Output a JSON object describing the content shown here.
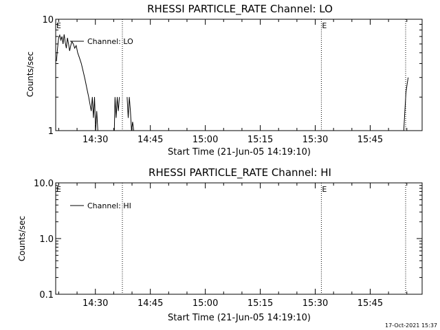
{
  "footer": {
    "timestamp": "17-Oct-2021 15:37"
  },
  "chart_data": [
    {
      "type": "line",
      "title": "RHESSI PARTICLE_RATE Channel: LO",
      "xlabel": "Start Time (21-Jun-05 14:19:10)",
      "ylabel": "Counts/sec",
      "yscale": "log",
      "ylim": [
        1,
        10
      ],
      "xlim_minutes_after_start": [
        0,
        100
      ],
      "x_ticks": [
        {
          "label": "14:30",
          "minutes": 10.83
        },
        {
          "label": "14:45",
          "minutes": 25.83
        },
        {
          "label": "15:00",
          "minutes": 40.83
        },
        {
          "label": "15:15",
          "minutes": 55.83
        },
        {
          "label": "15:30",
          "minutes": 70.83
        },
        {
          "label": "15:45",
          "minutes": 85.83
        }
      ],
      "y_ticks": [
        {
          "label": "1",
          "value": 1
        },
        {
          "label": "10",
          "value": 10
        }
      ],
      "legend": {
        "label": "Channel: LO",
        "placement": "top-left"
      },
      "markers": [
        {
          "label": "E",
          "minutes": 0
        },
        {
          "label": "E",
          "minutes": 72.5
        }
      ],
      "vlines_minutes": [
        18.2,
        72.5,
        95.5
      ],
      "series": [
        {
          "name": "Channel: LO",
          "points": [
            [
              0.2,
              4.2
            ],
            [
              0.5,
              5.5
            ],
            [
              0.8,
              6.8
            ],
            [
              1.1,
              7.2
            ],
            [
              1.4,
              6.5
            ],
            [
              1.7,
              7.0
            ],
            [
              2.0,
              6.0
            ],
            [
              2.3,
              7.3
            ],
            [
              2.6,
              6.2
            ],
            [
              2.9,
              5.5
            ],
            [
              3.2,
              6.8
            ],
            [
              3.5,
              6.0
            ],
            [
              3.8,
              5.2
            ],
            [
              4.1,
              5.8
            ],
            [
              4.4,
              6.3
            ],
            [
              4.8,
              6.0
            ],
            [
              5.2,
              5.5
            ],
            [
              5.6,
              5.8
            ],
            [
              6.0,
              5.0
            ],
            [
              6.5,
              4.5
            ],
            [
              7.0,
              4.0
            ],
            [
              7.5,
              3.4
            ],
            [
              8.0,
              2.9
            ],
            [
              8.5,
              2.4
            ],
            [
              9.0,
              2.0
            ],
            [
              9.4,
              1.7
            ],
            [
              9.7,
              1.5
            ],
            [
              10.0,
              2.0
            ],
            [
              10.3,
              1.3
            ],
            [
              10.6,
              2.0
            ],
            [
              10.9,
              1.0
            ],
            [
              11.2,
              1.5
            ],
            [
              11.5,
              1.0
            ],
            [
              16.0,
              1.0
            ],
            [
              16.2,
              2.0
            ],
            [
              16.5,
              1.3
            ],
            [
              16.8,
              2.0
            ],
            [
              17.1,
              1.5
            ],
            [
              17.4,
              2.0
            ],
            [
              19.5,
              2.0
            ],
            [
              19.8,
              1.3
            ],
            [
              20.1,
              2.0
            ],
            [
              20.4,
              1.5
            ],
            [
              20.7,
              1.0
            ],
            [
              21.0,
              1.2
            ],
            [
              21.3,
              1.0
            ],
            [
              95.0,
              1.0
            ],
            [
              95.3,
              1.5
            ],
            [
              95.6,
              2.2
            ],
            [
              95.9,
              2.6
            ],
            [
              96.2,
              3.0
            ]
          ]
        }
      ]
    },
    {
      "type": "line",
      "title": "RHESSI PARTICLE_RATE Channel: HI",
      "xlabel": "Start Time (21-Jun-05 14:19:10)",
      "ylabel": "Counts/sec",
      "yscale": "log",
      "ylim": [
        0.1,
        10
      ],
      "xlim_minutes_after_start": [
        0,
        100
      ],
      "x_ticks": [
        {
          "label": "14:30",
          "minutes": 10.83
        },
        {
          "label": "14:45",
          "minutes": 25.83
        },
        {
          "label": "15:00",
          "minutes": 40.83
        },
        {
          "label": "15:15",
          "minutes": 55.83
        },
        {
          "label": "15:30",
          "minutes": 70.83
        },
        {
          "label": "15:45",
          "minutes": 85.83
        }
      ],
      "y_ticks": [
        {
          "label": "0.1",
          "value": 0.1
        },
        {
          "label": "1.0",
          "value": 1
        },
        {
          "label": "10.0",
          "value": 10
        }
      ],
      "legend": {
        "label": "Channel: HI",
        "placement": "top-left"
      },
      "markers": [
        {
          "label": "E",
          "minutes": 0
        },
        {
          "label": "E",
          "minutes": 72.5
        }
      ],
      "vlines_minutes": [
        18.2,
        72.5,
        95.5
      ],
      "series": [
        {
          "name": "Channel: HI",
          "points": []
        }
      ]
    }
  ]
}
